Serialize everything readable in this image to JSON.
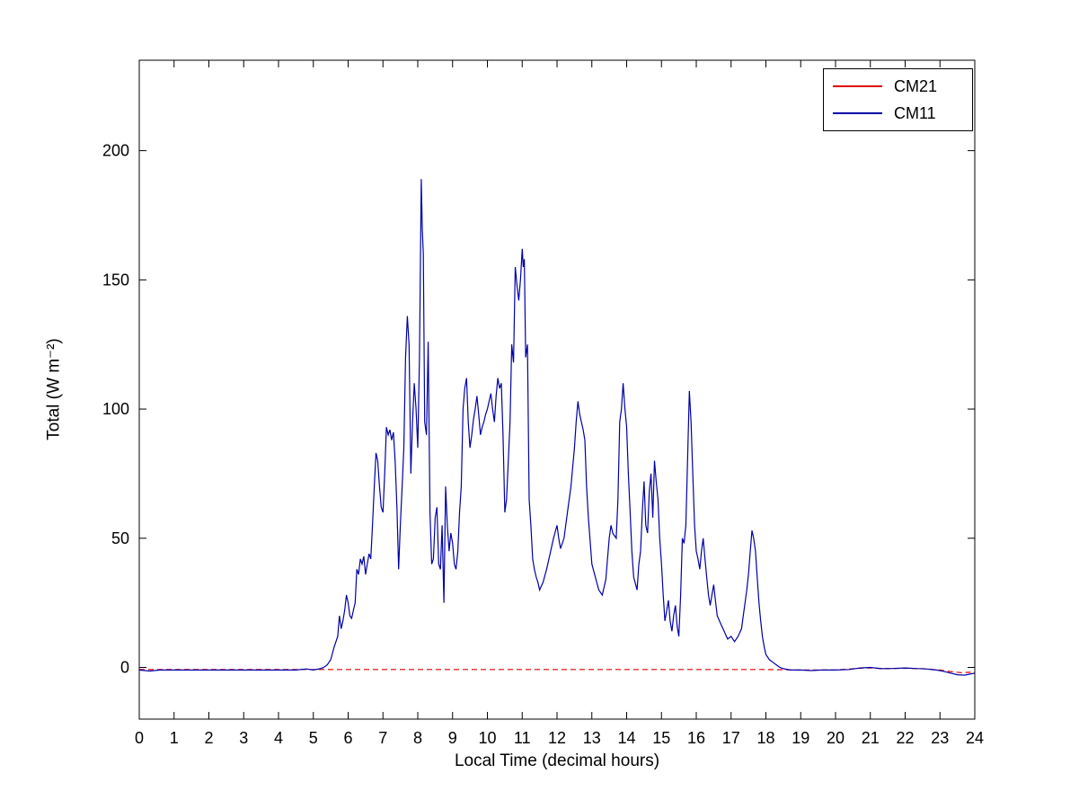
{
  "chart_data": {
    "type": "line",
    "title": "",
    "xlabel": "Local Time (decimal hours)",
    "ylabel": "Total (W m⁻²)",
    "xlim": [
      0,
      24
    ],
    "ylim": [
      -20,
      235
    ],
    "xticks": [
      0,
      1,
      2,
      3,
      4,
      5,
      6,
      7,
      8,
      9,
      10,
      11,
      12,
      13,
      14,
      15,
      16,
      17,
      18,
      19,
      20,
      21,
      22,
      23,
      24
    ],
    "yticks": [
      0,
      50,
      100,
      150,
      200
    ],
    "grid": false,
    "legend_position": "top-right",
    "series": [
      {
        "name": "CM21",
        "color": "#e00000",
        "dashed": true,
        "points": [
          [
            0,
            -0.8
          ],
          [
            1,
            -0.8
          ],
          [
            2,
            -0.8
          ],
          [
            3,
            -0.8
          ],
          [
            4,
            -0.8
          ],
          [
            5,
            -0.8
          ],
          [
            6,
            -0.8
          ],
          [
            7,
            -0.8
          ],
          [
            8,
            -0.8
          ],
          [
            9,
            -0.8
          ],
          [
            10,
            -0.8
          ],
          [
            11,
            -0.8
          ],
          [
            12,
            -0.8
          ],
          [
            13,
            -0.8
          ],
          [
            14,
            -0.8
          ],
          [
            15,
            -0.8
          ],
          [
            16,
            -0.8
          ],
          [
            17,
            -0.8
          ],
          [
            18,
            -0.8
          ],
          [
            19,
            -1
          ],
          [
            20,
            -1
          ],
          [
            20.7,
            -0.3
          ],
          [
            21,
            -0.2
          ],
          [
            21.5,
            -0.5
          ],
          [
            22,
            -0.3
          ],
          [
            22.5,
            -0.5
          ],
          [
            23,
            -1
          ],
          [
            23.3,
            -1.6
          ],
          [
            23.6,
            -2
          ],
          [
            24,
            -1.8
          ]
        ]
      },
      {
        "name": "CM11",
        "color": "#0000a8",
        "dashed": false,
        "points": [
          [
            0,
            -1
          ],
          [
            0.3,
            -1.4
          ],
          [
            0.6,
            -1
          ],
          [
            1,
            -1
          ],
          [
            1.5,
            -1
          ],
          [
            2,
            -1
          ],
          [
            2.5,
            -1
          ],
          [
            3,
            -1
          ],
          [
            3.5,
            -1
          ],
          [
            4,
            -1
          ],
          [
            4.5,
            -1
          ],
          [
            4.8,
            -0.6
          ],
          [
            5,
            -1
          ],
          [
            5.2,
            -0.5
          ],
          [
            5.3,
            0
          ],
          [
            5.4,
            1
          ],
          [
            5.5,
            3
          ],
          [
            5.6,
            8
          ],
          [
            5.7,
            12
          ],
          [
            5.75,
            20
          ],
          [
            5.8,
            15
          ],
          [
            5.85,
            18
          ],
          [
            5.9,
            22
          ],
          [
            5.95,
            28
          ],
          [
            6,
            25
          ],
          [
            6.05,
            20
          ],
          [
            6.1,
            19
          ],
          [
            6.15,
            22
          ],
          [
            6.2,
            25
          ],
          [
            6.25,
            38
          ],
          [
            6.3,
            36
          ],
          [
            6.35,
            42
          ],
          [
            6.4,
            40
          ],
          [
            6.45,
            43
          ],
          [
            6.5,
            36
          ],
          [
            6.55,
            40
          ],
          [
            6.6,
            44
          ],
          [
            6.65,
            42
          ],
          [
            6.7,
            55
          ],
          [
            6.75,
            70
          ],
          [
            6.8,
            83
          ],
          [
            6.85,
            80
          ],
          [
            6.9,
            70
          ],
          [
            6.95,
            62
          ],
          [
            7,
            60
          ],
          [
            7.05,
            75
          ],
          [
            7.1,
            93
          ],
          [
            7.15,
            90
          ],
          [
            7.2,
            92
          ],
          [
            7.25,
            88
          ],
          [
            7.3,
            91
          ],
          [
            7.35,
            80
          ],
          [
            7.4,
            62
          ],
          [
            7.45,
            38
          ],
          [
            7.5,
            55
          ],
          [
            7.55,
            70
          ],
          [
            7.6,
            85
          ],
          [
            7.65,
            120
          ],
          [
            7.7,
            136
          ],
          [
            7.75,
            125
          ],
          [
            7.8,
            75
          ],
          [
            7.85,
            95
          ],
          [
            7.9,
            110
          ],
          [
            7.95,
            100
          ],
          [
            8,
            85
          ],
          [
            8.05,
            120
          ],
          [
            8.1,
            189
          ],
          [
            8.13,
            170
          ],
          [
            8.16,
            160
          ],
          [
            8.2,
            95
          ],
          [
            8.25,
            90
          ],
          [
            8.3,
            126
          ],
          [
            8.35,
            60
          ],
          [
            8.4,
            40
          ],
          [
            8.45,
            42
          ],
          [
            8.5,
            58
          ],
          [
            8.55,
            62
          ],
          [
            8.6,
            40
          ],
          [
            8.65,
            38
          ],
          [
            8.7,
            55
          ],
          [
            8.75,
            25
          ],
          [
            8.8,
            70
          ],
          [
            8.85,
            55
          ],
          [
            8.9,
            45
          ],
          [
            8.95,
            52
          ],
          [
            9,
            48
          ],
          [
            9.05,
            40
          ],
          [
            9.1,
            38
          ],
          [
            9.15,
            45
          ],
          [
            9.2,
            60
          ],
          [
            9.25,
            70
          ],
          [
            9.3,
            100
          ],
          [
            9.35,
            108
          ],
          [
            9.4,
            112
          ],
          [
            9.45,
            95
          ],
          [
            9.5,
            85
          ],
          [
            9.55,
            90
          ],
          [
            9.6,
            96
          ],
          [
            9.65,
            100
          ],
          [
            9.7,
            105
          ],
          [
            9.75,
            98
          ],
          [
            9.8,
            90
          ],
          [
            9.85,
            93
          ],
          [
            9.9,
            95
          ],
          [
            9.95,
            98
          ],
          [
            10,
            100
          ],
          [
            10.05,
            103
          ],
          [
            10.1,
            106
          ],
          [
            10.15,
            100
          ],
          [
            10.2,
            95
          ],
          [
            10.25,
            105
          ],
          [
            10.3,
            112
          ],
          [
            10.35,
            108
          ],
          [
            10.4,
            110
          ],
          [
            10.45,
            90
          ],
          [
            10.5,
            60
          ],
          [
            10.55,
            65
          ],
          [
            10.6,
            80
          ],
          [
            10.65,
            95
          ],
          [
            10.7,
            125
          ],
          [
            10.75,
            118
          ],
          [
            10.8,
            155
          ],
          [
            10.85,
            148
          ],
          [
            10.9,
            142
          ],
          [
            10.95,
            150
          ],
          [
            11,
            162
          ],
          [
            11.03,
            155
          ],
          [
            11.06,
            158
          ],
          [
            11.1,
            120
          ],
          [
            11.15,
            125
          ],
          [
            11.2,
            65
          ],
          [
            11.25,
            55
          ],
          [
            11.3,
            42
          ],
          [
            11.35,
            38
          ],
          [
            11.4,
            35
          ],
          [
            11.45,
            33
          ],
          [
            11.5,
            30
          ],
          [
            11.6,
            33
          ],
          [
            11.7,
            38
          ],
          [
            11.8,
            44
          ],
          [
            11.9,
            50
          ],
          [
            12,
            55
          ],
          [
            12.05,
            50
          ],
          [
            12.1,
            46
          ],
          [
            12.2,
            50
          ],
          [
            12.3,
            60
          ],
          [
            12.4,
            70
          ],
          [
            12.5,
            85
          ],
          [
            12.55,
            95
          ],
          [
            12.6,
            103
          ],
          [
            12.65,
            98
          ],
          [
            12.7,
            95
          ],
          [
            12.75,
            92
          ],
          [
            12.8,
            88
          ],
          [
            12.85,
            70
          ],
          [
            12.9,
            58
          ],
          [
            13,
            40
          ],
          [
            13.1,
            35
          ],
          [
            13.2,
            30
          ],
          [
            13.3,
            28
          ],
          [
            13.4,
            34
          ],
          [
            13.5,
            50
          ],
          [
            13.55,
            55
          ],
          [
            13.6,
            52
          ],
          [
            13.7,
            50
          ],
          [
            13.75,
            65
          ],
          [
            13.8,
            95
          ],
          [
            13.85,
            100
          ],
          [
            13.9,
            110
          ],
          [
            13.95,
            100
          ],
          [
            14,
            93
          ],
          [
            14.05,
            75
          ],
          [
            14.1,
            60
          ],
          [
            14.15,
            45
          ],
          [
            14.2,
            35
          ],
          [
            14.3,
            30
          ],
          [
            14.35,
            40
          ],
          [
            14.4,
            45
          ],
          [
            14.45,
            60
          ],
          [
            14.5,
            72
          ],
          [
            14.55,
            55
          ],
          [
            14.6,
            52
          ],
          [
            14.65,
            68
          ],
          [
            14.7,
            75
          ],
          [
            14.75,
            58
          ],
          [
            14.8,
            80
          ],
          [
            14.85,
            72
          ],
          [
            14.9,
            65
          ],
          [
            14.95,
            50
          ],
          [
            15,
            40
          ],
          [
            15.05,
            28
          ],
          [
            15.1,
            18
          ],
          [
            15.15,
            22
          ],
          [
            15.2,
            26
          ],
          [
            15.25,
            18
          ],
          [
            15.3,
            14
          ],
          [
            15.35,
            20
          ],
          [
            15.4,
            24
          ],
          [
            15.45,
            16
          ],
          [
            15.5,
            12
          ],
          [
            15.55,
            28
          ],
          [
            15.6,
            50
          ],
          [
            15.65,
            48
          ],
          [
            15.7,
            55
          ],
          [
            15.75,
            80
          ],
          [
            15.8,
            107
          ],
          [
            15.85,
            95
          ],
          [
            15.9,
            75
          ],
          [
            15.95,
            55
          ],
          [
            16,
            45
          ],
          [
            16.05,
            42
          ],
          [
            16.1,
            38
          ],
          [
            16.15,
            45
          ],
          [
            16.2,
            50
          ],
          [
            16.25,
            42
          ],
          [
            16.3,
            35
          ],
          [
            16.35,
            28
          ],
          [
            16.4,
            24
          ],
          [
            16.45,
            28
          ],
          [
            16.5,
            32
          ],
          [
            16.55,
            26
          ],
          [
            16.6,
            20
          ],
          [
            16.7,
            17
          ],
          [
            16.8,
            14
          ],
          [
            16.9,
            11
          ],
          [
            17,
            12
          ],
          [
            17.1,
            10
          ],
          [
            17.2,
            12
          ],
          [
            17.3,
            15
          ],
          [
            17.35,
            20
          ],
          [
            17.4,
            25
          ],
          [
            17.45,
            30
          ],
          [
            17.5,
            36
          ],
          [
            17.55,
            45
          ],
          [
            17.6,
            53
          ],
          [
            17.65,
            50
          ],
          [
            17.7,
            45
          ],
          [
            17.75,
            35
          ],
          [
            17.8,
            25
          ],
          [
            17.85,
            18
          ],
          [
            17.9,
            12
          ],
          [
            17.95,
            8
          ],
          [
            18,
            5
          ],
          [
            18.1,
            3
          ],
          [
            18.2,
            2
          ],
          [
            18.3,
            1
          ],
          [
            18.4,
            0
          ],
          [
            18.5,
            -0.5
          ],
          [
            18.7,
            -1
          ],
          [
            19,
            -1
          ],
          [
            19.3,
            -1.2
          ],
          [
            19.6,
            -1
          ],
          [
            20,
            -1
          ],
          [
            20.4,
            -0.8
          ],
          [
            20.7,
            -0.2
          ],
          [
            21,
            0
          ],
          [
            21.3,
            -0.5
          ],
          [
            21.6,
            -0.4
          ],
          [
            22,
            -0.2
          ],
          [
            22.3,
            -0.4
          ],
          [
            22.6,
            -0.6
          ],
          [
            22.9,
            -1
          ],
          [
            23.1,
            -1.5
          ],
          [
            23.3,
            -2.2
          ],
          [
            23.5,
            -2.8
          ],
          [
            23.7,
            -3
          ],
          [
            23.85,
            -2.6
          ],
          [
            24,
            -2.2
          ]
        ]
      }
    ]
  }
}
